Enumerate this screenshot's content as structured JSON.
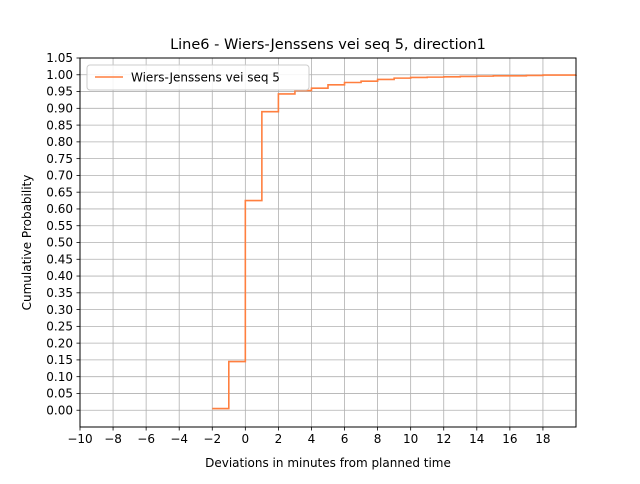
{
  "chart_data": {
    "type": "line",
    "step": true,
    "title": "Line6 - Wiers-Jenssens vei seq 5, direction1",
    "xlabel": "Deviations in minutes from planned time",
    "ylabel": "Cumulative Probability",
    "xlim": [
      -10,
      20
    ],
    "ylim": [
      -0.05,
      1.05
    ],
    "xticks": [
      -10,
      -8,
      -6,
      -4,
      -2,
      0,
      2,
      4,
      6,
      8,
      10,
      12,
      14,
      16,
      18
    ],
    "xtick_labels": [
      "−10",
      "−8",
      "−6",
      "−4",
      "−2",
      "0",
      "2",
      "4",
      "6",
      "8",
      "10",
      "12",
      "14",
      "16",
      "18"
    ],
    "yticks": [
      0,
      0.05,
      0.1,
      0.15,
      0.2,
      0.25,
      0.3,
      0.35,
      0.4,
      0.45,
      0.5,
      0.55,
      0.6,
      0.65,
      0.7,
      0.75,
      0.8,
      0.85,
      0.9,
      0.95,
      1.0,
      1.05
    ],
    "ytick_labels": [
      "0.00",
      "0.05",
      "0.10",
      "0.15",
      "0.20",
      "0.25",
      "0.30",
      "0.35",
      "0.40",
      "0.45",
      "0.50",
      "0.55",
      "0.60",
      "0.65",
      "0.70",
      "0.75",
      "0.80",
      "0.85",
      "0.90",
      "0.95",
      "1.00",
      "1.05"
    ],
    "grid": true,
    "legend_position": "top-left",
    "series": [
      {
        "name": "Wiers-Jenssens vei seq 5",
        "color": "#ff7f3f",
        "x": [
          -2,
          -1,
          0,
          1,
          2,
          3,
          4,
          5,
          6,
          7,
          8,
          9,
          10,
          11,
          12,
          13,
          14,
          15,
          16,
          17,
          18,
          20
        ],
        "y": [
          0.005,
          0.145,
          0.625,
          0.89,
          0.943,
          0.953,
          0.96,
          0.97,
          0.977,
          0.981,
          0.986,
          0.99,
          0.992,
          0.993,
          0.994,
          0.995,
          0.996,
          0.997,
          0.997,
          0.998,
          0.999,
          1.0
        ]
      }
    ]
  }
}
